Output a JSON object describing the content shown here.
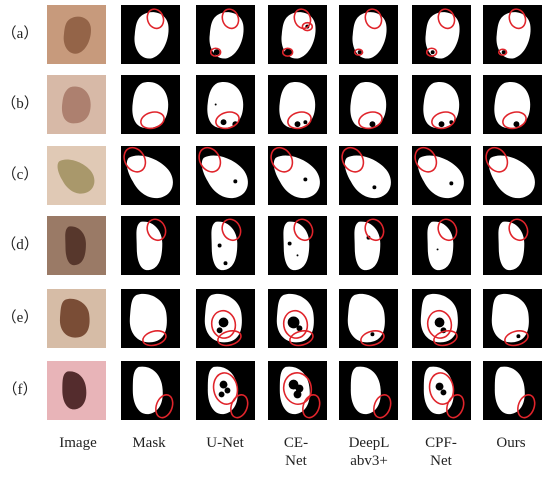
{
  "rows": [
    {
      "label": "（a）",
      "photo_color": "#c79a7c",
      "lesion_color": "#8b5a3f"
    },
    {
      "label": "（b）",
      "photo_color": "#d7b9a7",
      "lesion_color": "#a67565"
    },
    {
      "label": "（c）",
      "photo_color": "#e0c9b5",
      "lesion_color": "#9f8f5e"
    },
    {
      "label": "（d）",
      "photo_color": "#9a7a66",
      "lesion_color": "#4b2c22"
    },
    {
      "label": "（e）",
      "photo_color": "#d6bca6",
      "lesion_color": "#6a3a22"
    },
    {
      "label": "（f）",
      "photo_color": "#e8b4b8",
      "lesion_color": "#3a1414"
    }
  ],
  "columns": [
    {
      "label": "Image"
    },
    {
      "label": "Mask"
    },
    {
      "label": "U-Net"
    },
    {
      "label": "CE-\nNet"
    },
    {
      "label": "DeepL\nabv3+"
    },
    {
      "label": "CPF-\nNet"
    },
    {
      "label": "Ours"
    }
  ],
  "colors": {
    "mask_bg": "#000000",
    "mask_fg": "#ffffff",
    "highlight": "#e0242b"
  }
}
